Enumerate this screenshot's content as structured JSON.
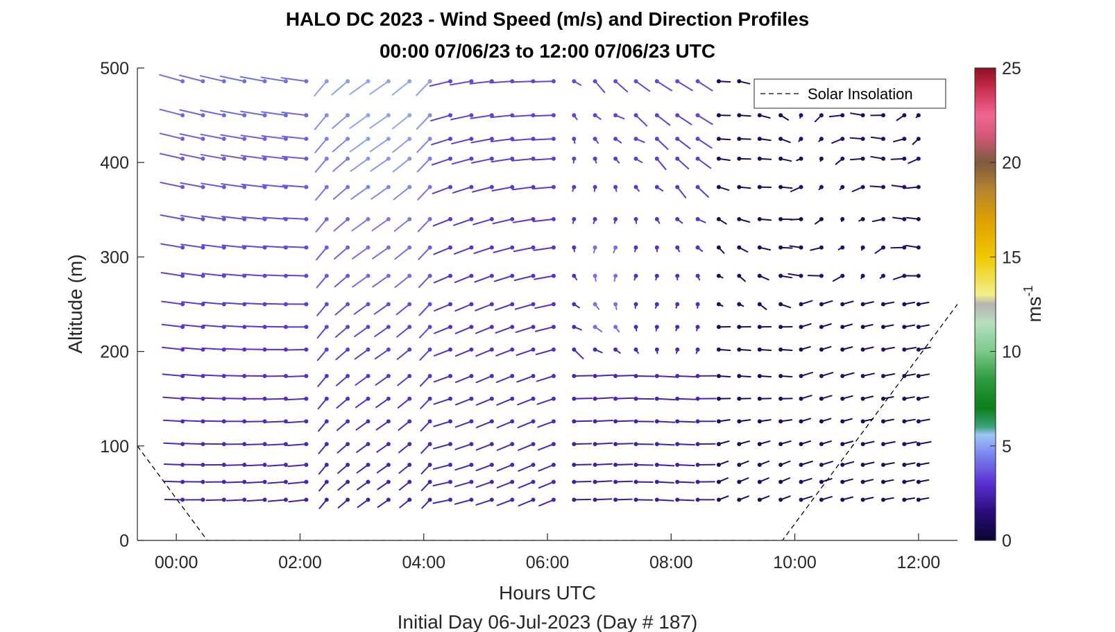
{
  "chart_data": {
    "type": "wind-barb-profile",
    "title_line1": "HALO DC 2023 - Wind Speed (m/s) and Direction Profiles",
    "title_line2": "00:00 07/06/23 to 12:00 07/06/23  UTC",
    "xlabel": "Hours UTC",
    "xlabel2": "Initial Day 06-Jul-2023 (Day # 187)",
    "ylabel": "Altitude (m)",
    "xlim": [
      -0.63,
      12.63
    ],
    "ylim": [
      0,
      500
    ],
    "x_ticks": [
      {
        "value": 0,
        "label": "00:00"
      },
      {
        "value": 2,
        "label": "02:00"
      },
      {
        "value": 4,
        "label": "04:00"
      },
      {
        "value": 6,
        "label": "06:00"
      },
      {
        "value": 8,
        "label": "08:00"
      },
      {
        "value": 10,
        "label": "10:00"
      },
      {
        "value": 12,
        "label": "12:00"
      }
    ],
    "y_ticks": [
      {
        "value": 0,
        "label": "0"
      },
      {
        "value": 100,
        "label": "100"
      },
      {
        "value": 200,
        "label": "200"
      },
      {
        "value": 300,
        "label": "300"
      },
      {
        "value": 400,
        "label": "400"
      },
      {
        "value": 500,
        "label": "500"
      }
    ],
    "colorbar": {
      "label": "ms",
      "label_superscript": "-1",
      "range": [
        0,
        25
      ],
      "ticks": [
        {
          "value": 0,
          "label": "0"
        },
        {
          "value": 5,
          "label": "5"
        },
        {
          "value": 10,
          "label": "10"
        },
        {
          "value": 15,
          "label": "15"
        },
        {
          "value": 20,
          "label": "20"
        },
        {
          "value": 25,
          "label": "25"
        }
      ],
      "stops": [
        [
          0,
          "#0d0630"
        ],
        [
          1.5,
          "#2a0c7a"
        ],
        [
          3,
          "#5a2fd0"
        ],
        [
          4.5,
          "#7a82ee"
        ],
        [
          5.6,
          "#9ec6f5"
        ],
        [
          6.0,
          "#3ba37a"
        ],
        [
          7,
          "#0a7f1a"
        ],
        [
          8.5,
          "#2e9a3e"
        ],
        [
          10,
          "#7cc889"
        ],
        [
          11.5,
          "#b6e0bf"
        ],
        [
          12.5,
          "#b3b3b3"
        ],
        [
          13.0,
          "#f1f08c"
        ],
        [
          15,
          "#f0c800"
        ],
        [
          17,
          "#dda000"
        ],
        [
          18.5,
          "#b6862e"
        ],
        [
          20,
          "#7d5a3e"
        ],
        [
          21.5,
          "#d9597a"
        ],
        [
          22.5,
          "#f06692"
        ],
        [
          24,
          "#c62a4a"
        ],
        [
          25,
          "#8e0e22"
        ]
      ]
    },
    "legend": {
      "label": "Solar Insolation",
      "position": "top-right",
      "line_style": "dashed"
    },
    "solar_insolation": {
      "x": [
        -0.63,
        0.5,
        9.8,
        12.63
      ],
      "y": [
        100,
        0,
        0,
        250
      ]
    },
    "grid": false,
    "wind_field": {
      "times_h": [
        0.1,
        0.43,
        0.77,
        1.1,
        1.43,
        1.77,
        2.1,
        2.43,
        2.77,
        3.1,
        3.43,
        3.77,
        4.1,
        4.43,
        4.77,
        5.1,
        5.43,
        5.77,
        6.1,
        6.43,
        6.77,
        7.1,
        7.43,
        7.77,
        8.1,
        8.43,
        8.77,
        9.1,
        9.43,
        9.77,
        10.1,
        10.43,
        10.77,
        11.1,
        11.43,
        11.77,
        12.0
      ],
      "altitudes_m": [
        43,
        62,
        80,
        102,
        126,
        150,
        174,
        202,
        226,
        250,
        280,
        310,
        340,
        374,
        404,
        425,
        450,
        486
      ],
      "description": "Each barb: dot at sample point, line pointing toward wind source; color = wind speed (m/s). Light winds (~1-2 m/s) at night below 200 m, 3-5 m/s aloft around 03:00-04:00 and 07:00 near 250 m, near calm after 10:00."
    }
  }
}
